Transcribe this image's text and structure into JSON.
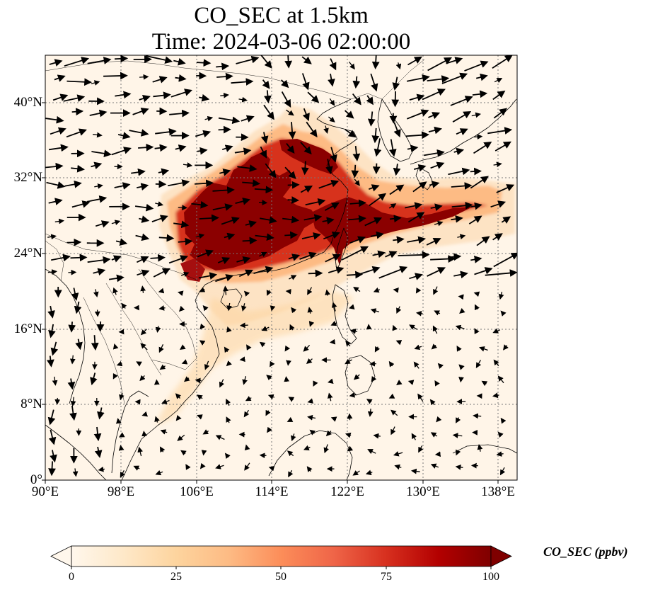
{
  "title": {
    "line1": "CO_SEC at 1.5km",
    "line2": "Time: 2024-03-06 02:00:00"
  },
  "map": {
    "variable": "CO_SEC",
    "level": "1.5km",
    "lon_range": [
      90,
      140
    ],
    "lat_range": [
      0,
      45
    ],
    "lon_ticks": [
      "90°E",
      "98°E",
      "106°E",
      "114°E",
      "122°E",
      "130°E",
      "138°E"
    ],
    "lat_ticks": [
      "0°",
      "8°N",
      "16°N",
      "24°N",
      "32°N",
      "40°N"
    ],
    "lon_tick_values": [
      90,
      98,
      106,
      114,
      122,
      130,
      138
    ],
    "lat_tick_values": [
      0,
      8,
      16,
      24,
      32,
      40
    ],
    "gridlines": true,
    "vectors": "wind arrows (black)"
  },
  "colorbar": {
    "label": "CO_SEC (ppbv)",
    "ticks": [
      "0",
      "25",
      "50",
      "75",
      "100"
    ],
    "tick_values": [
      0,
      25,
      50,
      75,
      100
    ],
    "range": [
      0,
      100
    ],
    "extend": "both",
    "colors": [
      "#fff7ec",
      "#fee8c8",
      "#fdd49e",
      "#fdbb84",
      "#fc8d59",
      "#ef6548",
      "#d7301f",
      "#b30000",
      "#7f0000"
    ]
  }
}
